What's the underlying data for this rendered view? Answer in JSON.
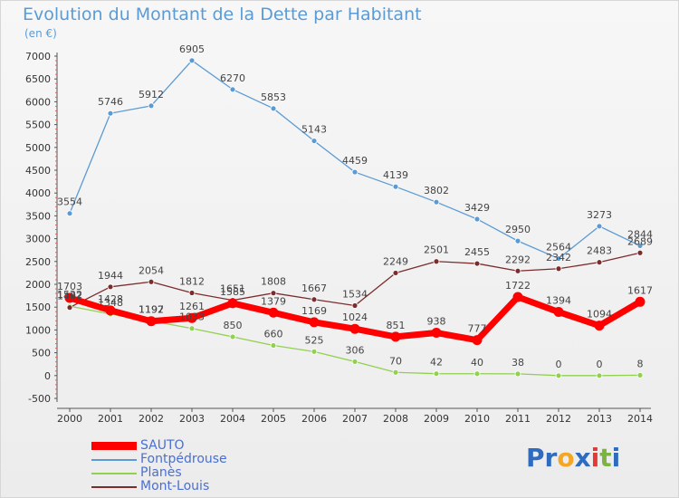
{
  "chart_data": {
    "type": "line",
    "title": "Evolution du Montant de la Dette par Habitant",
    "subtitle": "(en €)",
    "x": [
      "2000",
      "2001",
      "2002",
      "2003",
      "2004",
      "2005",
      "2006",
      "2007",
      "2008",
      "2009",
      "2010",
      "2011",
      "2012",
      "2013",
      "2014"
    ],
    "ylim": [
      -500,
      7000
    ],
    "yticks": [
      "7000",
      "6500",
      "6000",
      "5500",
      "5000",
      "4500",
      "4000",
      "3500",
      "3000",
      "2500",
      "2000",
      "1500",
      "1000",
      "500",
      "0",
      "-500"
    ],
    "grid": false,
    "legend_position": "bottom-left",
    "series": [
      {
        "name": "SAUTO",
        "color": "#ff0000",
        "values": [
          1703,
          1428,
          1192,
          1261,
          1585,
          1379,
          1169,
          1024,
          851,
          938,
          777,
          1722,
          1394,
          1094,
          1617
        ],
        "labels": [
          "1703",
          "1428",
          "1192",
          "1261",
          "1585",
          "1379",
          "1169",
          "1024",
          "851",
          "938",
          "777",
          "1722",
          "1394",
          "1094",
          "1617"
        ]
      },
      {
        "name": "Fontpédrouse",
        "color": "#5b9bd5",
        "values": [
          3554,
          5746,
          5912,
          6905,
          6270,
          5853,
          5143,
          4459,
          4139,
          3802,
          3429,
          2950,
          2564,
          3273,
          2844
        ],
        "labels": [
          "3554",
          "5746",
          "5912",
          "6905",
          "6270",
          "5853",
          "5143",
          "4459",
          "4139",
          "3802",
          "3429",
          "2950",
          "2564",
          "3273",
          "2844"
        ]
      },
      {
        "name": "Planès",
        "color": "#92d050",
        "values": [
          1522,
          1348,
          1197,
          1033,
          850,
          660,
          525,
          306,
          70,
          42,
          40,
          38,
          0,
          0,
          8
        ],
        "labels": [
          "1522",
          "1348",
          "1197",
          "1033",
          "850",
          "660",
          "525",
          "306",
          "70",
          "42",
          "40",
          "38",
          "0",
          "0",
          "8"
        ]
      },
      {
        "name": "Mont-Louis",
        "color": "#7b2c2c",
        "values": [
          1492,
          1944,
          2054,
          1812,
          1651,
          1808,
          1667,
          1534,
          2249,
          2501,
          2455,
          2292,
          2342,
          2483,
          2689
        ],
        "labels": [
          "1492",
          "1944",
          "2054",
          "1812",
          "1651",
          "1808",
          "1667",
          "1534",
          "2249",
          "2501",
          "2455",
          "2292",
          "2342",
          "2483",
          "2689"
        ]
      }
    ]
  },
  "logo": {
    "text_parts": [
      "Pr",
      "o",
      "x",
      "i",
      "t",
      "i"
    ],
    "colors": [
      "#2f6cc0",
      "#f5a623",
      "#2f6cc0",
      "#e53935",
      "#7cb342",
      "#2f6cc0"
    ]
  }
}
